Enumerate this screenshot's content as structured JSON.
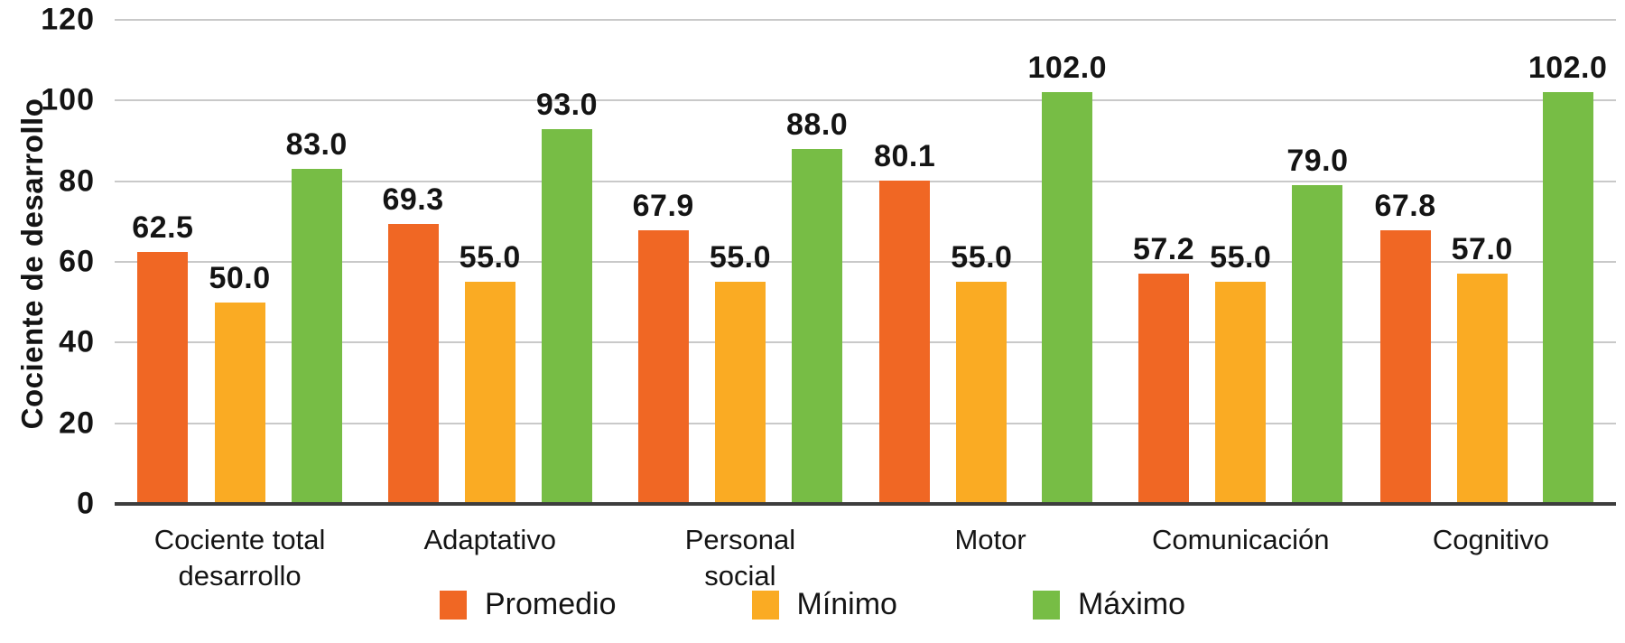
{
  "chart_data": {
    "type": "bar",
    "title": "",
    "ylabel": "Cociente de desarrollo",
    "xlabel": "",
    "ylim": [
      0,
      120
    ],
    "yticks": [
      0,
      20,
      40,
      60,
      80,
      100,
      120
    ],
    "grid": true,
    "legend_position": "bottom",
    "value_label_format": "one-decimal",
    "categories": [
      "Cociente total\ndesarrollo",
      "Adaptativo",
      "Personal\nsocial",
      "Motor",
      "Comunicación",
      "Cognitivo"
    ],
    "series": [
      {
        "name": "Promedio",
        "color": "#f06724",
        "values": [
          62.5,
          69.3,
          67.9,
          80.1,
          57.2,
          67.8
        ]
      },
      {
        "name": "Mínimo",
        "color": "#faab23",
        "values": [
          50.0,
          55.0,
          55.0,
          55.0,
          55.0,
          57.0
        ]
      },
      {
        "name": "Máximo",
        "color": "#77bd45",
        "values": [
          83.0,
          93.0,
          88.0,
          102.0,
          79.0,
          102.0
        ]
      }
    ],
    "value_labels": [
      [
        "62.5",
        "50.0",
        "83.0"
      ],
      [
        "69.3",
        "55.0",
        "93.0"
      ],
      [
        "67.9",
        "55.0",
        "88.0"
      ],
      [
        "80.1",
        "55.0",
        "102.0"
      ],
      [
        "57.2",
        "55.0",
        "79.0"
      ],
      [
        "67.8",
        "57.0",
        "102.0"
      ]
    ],
    "colors": {
      "background": "#ffffff",
      "gridline": "#c9c9c9",
      "axis_line": "#3d3d3d",
      "text": "#141414"
    }
  }
}
